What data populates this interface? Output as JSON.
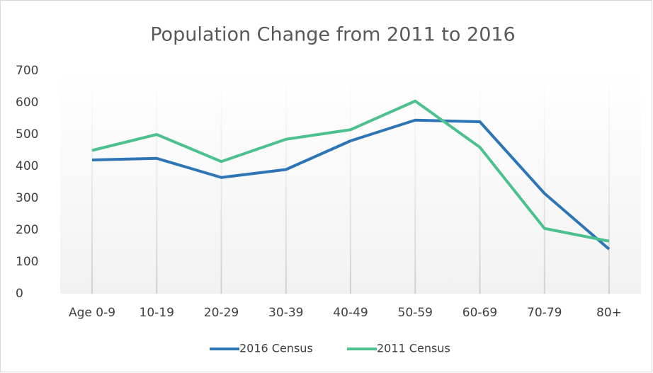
{
  "chart_data": {
    "type": "line",
    "title": "Population Change from 2011 to 2016",
    "categories": [
      "Age 0-9",
      "10-19",
      "20-29",
      "30-39",
      "40-49",
      "50-59",
      "60-69",
      "70-79",
      "80+"
    ],
    "series": [
      {
        "name": "2016 Census",
        "color": "#2e75b6",
        "values": [
          420,
          425,
          365,
          390,
          480,
          545,
          540,
          315,
          140
        ]
      },
      {
        "name": "2011 Census",
        "color": "#4cc18f",
        "values": [
          450,
          500,
          415,
          485,
          515,
          605,
          460,
          205,
          165
        ]
      }
    ],
    "ylim": [
      0,
      700
    ],
    "yticks": [
      0,
      100,
      200,
      300,
      400,
      500,
      600,
      700
    ],
    "grid": "x",
    "legend": "bottom"
  }
}
